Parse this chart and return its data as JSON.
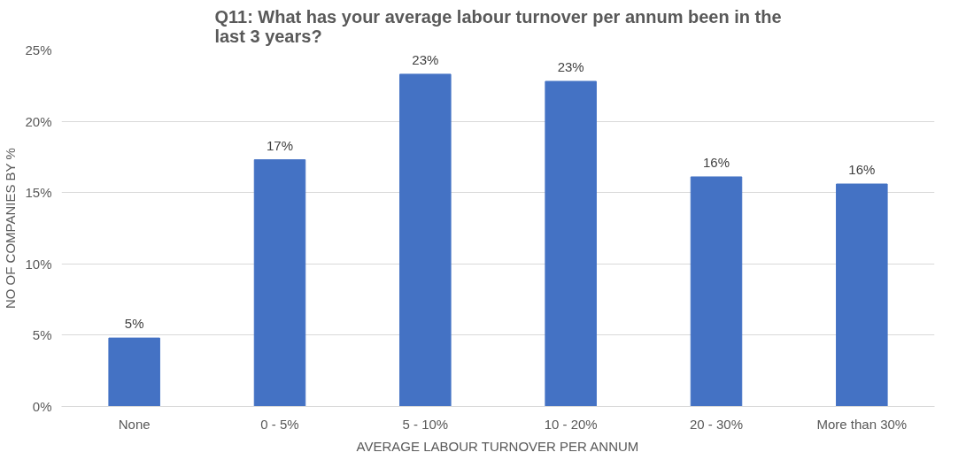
{
  "chart_data": {
    "type": "bar",
    "title": "Q11: What has your average labour turnover per annum been in the\nlast 3 years?",
    "xlabel": "AVERAGE LABOUR TURNOVER PER ANNUM",
    "ylabel": "NO OF COMPANIES BY %",
    "categories": [
      "None",
      "0 - 5%",
      "5 - 10%",
      "10 - 20%",
      "20 - 30%",
      "More than 30%"
    ],
    "values": [
      4.8,
      17.3,
      23.3,
      22.8,
      16.1,
      15.6
    ],
    "value_labels": [
      "5%",
      "17%",
      "23%",
      "23%",
      "16%",
      "16%"
    ],
    "color": "#4472c4",
    "ylim": [
      0,
      25
    ],
    "yticks": [
      {
        "value": 0,
        "label": "0%"
      },
      {
        "value": 5,
        "label": "5%"
      },
      {
        "value": 10,
        "label": "10%"
      },
      {
        "value": 15,
        "label": "15%"
      },
      {
        "value": 20,
        "label": "20%"
      },
      {
        "value": 25,
        "label": "25%"
      }
    ],
    "grid": "y"
  }
}
